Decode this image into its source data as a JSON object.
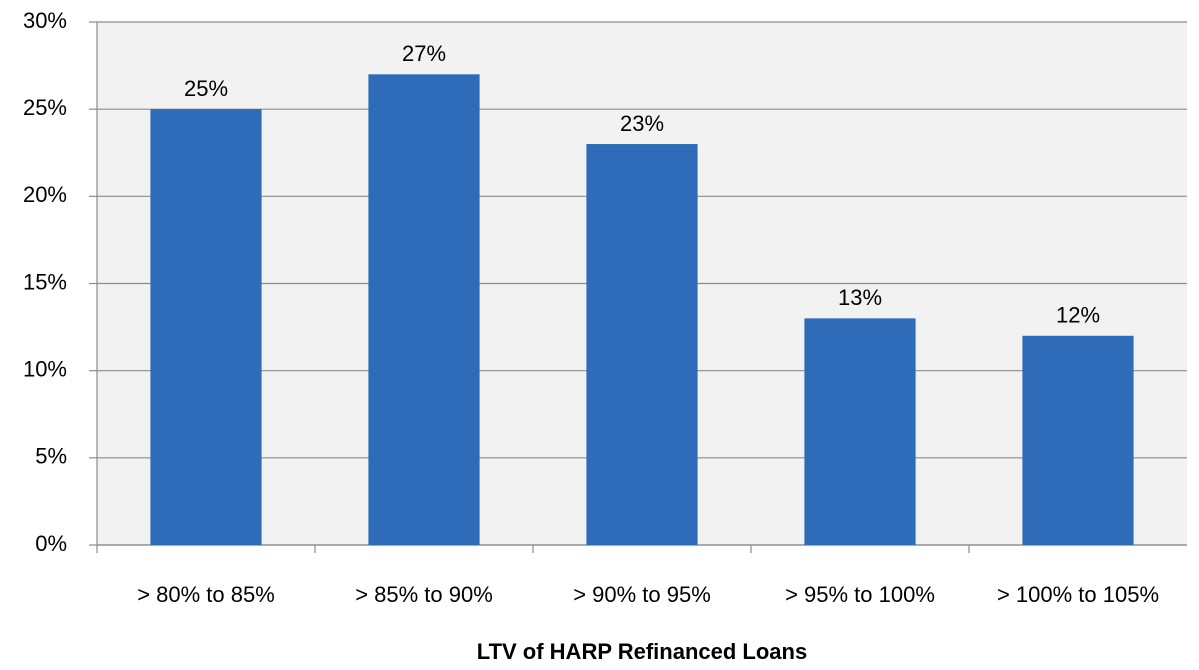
{
  "chart_data": {
    "type": "bar",
    "x_label": "LTV of HARP Refinanced Loans",
    "categories": [
      "> 80% to 85%",
      "> 85% to 90%",
      "> 90% to 95%",
      "> 95% to 100%",
      "> 100% to 105%"
    ],
    "values": [
      25,
      27,
      23,
      13,
      12
    ],
    "value_labels": [
      "25%",
      "27%",
      "23%",
      "13%",
      "12%"
    ],
    "color": "#2e6bb8",
    "ylim": [
      0,
      30
    ],
    "yticks": [
      {
        "value": 0,
        "label": "0%"
      },
      {
        "value": 5,
        "label": "5%"
      },
      {
        "value": 10,
        "label": "10%"
      },
      {
        "value": 15,
        "label": "15%"
      },
      {
        "value": 20,
        "label": "20%"
      },
      {
        "value": 25,
        "label": "25%"
      },
      {
        "value": 30,
        "label": "30%"
      }
    ],
    "grid": true
  }
}
